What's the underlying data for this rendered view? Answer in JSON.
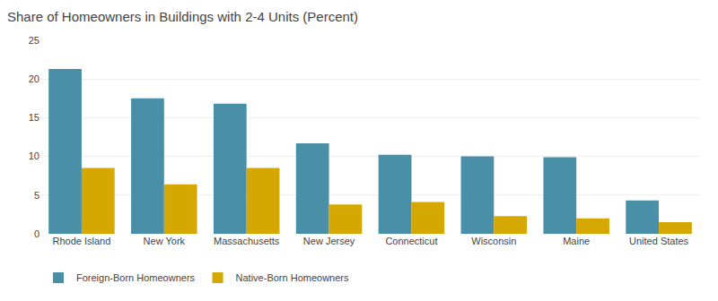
{
  "chart_data": {
    "type": "bar",
    "title": "Share of Homeowners in Buildings with 2-4 Units (Percent)",
    "categories": [
      "Rhode Island",
      "New York",
      "Massachusetts",
      "New Jersey",
      "Connecticut",
      "Wisconsin",
      "Maine",
      "United States"
    ],
    "series": [
      {
        "name": "Foreign-Born Homeowners",
        "color": "#4a8fa8",
        "values": [
          21.3,
          17.5,
          16.8,
          11.7,
          10.2,
          10.0,
          9.9,
          4.3
        ]
      },
      {
        "name": "Native-Born Homeowners",
        "color": "#d4a800",
        "values": [
          8.5,
          6.4,
          8.5,
          3.8,
          4.1,
          2.3,
          2.0,
          1.5
        ]
      }
    ],
    "ylim": [
      0,
      25
    ],
    "yticks": [
      0,
      5,
      10,
      15,
      20,
      25
    ],
    "grid": true,
    "legend": "bottom"
  }
}
